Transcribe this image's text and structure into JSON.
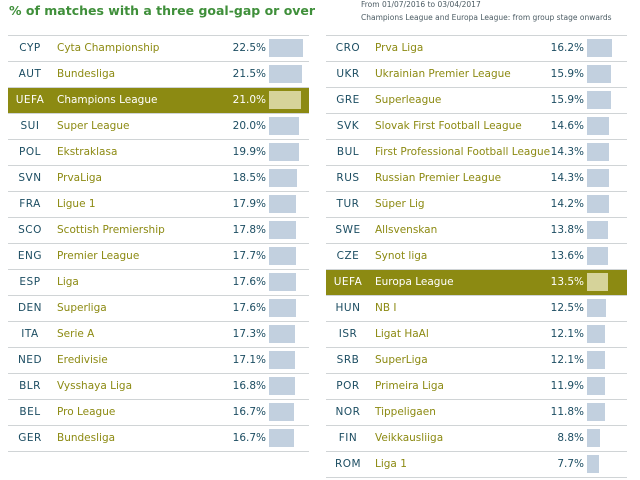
{
  "title": "% of matches with a three goal-gap or over",
  "notes": {
    "period": "From 01/07/2016 to 03/04/2017",
    "scope": "Champions League and Europa League: from group stage onwards"
  },
  "colors": {
    "title": "#3f8f3a",
    "league_text": "#8c8a12",
    "uefa_highlight": "#8c8a12",
    "bar": "#c2d0df",
    "uefa_bar": "#d6d39a"
  },
  "chart_data": {
    "type": "bar",
    "orientation": "horizontal",
    "unit": "%",
    "xlim": [
      0,
      25
    ],
    "columns": [
      {
        "rows": [
          {
            "code": "CYP",
            "league": "Cyta Championship",
            "value": 22.5,
            "label": "22.5%"
          },
          {
            "code": "AUT",
            "league": "Bundesliga",
            "value": 21.5,
            "label": "21.5%"
          },
          {
            "code": "UEFA",
            "league": "Champions League",
            "value": 21.0,
            "label": "21.0%",
            "highlight": true
          },
          {
            "code": "SUI",
            "league": "Super League",
            "value": 20.0,
            "label": "20.0%"
          },
          {
            "code": "POL",
            "league": "Ekstraklasa",
            "value": 19.9,
            "label": "19.9%"
          },
          {
            "code": "SVN",
            "league": "PrvaLiga",
            "value": 18.5,
            "label": "18.5%"
          },
          {
            "code": "FRA",
            "league": "Ligue 1",
            "value": 17.9,
            "label": "17.9%"
          },
          {
            "code": "SCO",
            "league": "Scottish Premiership",
            "value": 17.8,
            "label": "17.8%"
          },
          {
            "code": "ENG",
            "league": "Premier League",
            "value": 17.7,
            "label": "17.7%"
          },
          {
            "code": "ESP",
            "league": "Liga",
            "value": 17.6,
            "label": "17.6%"
          },
          {
            "code": "DEN",
            "league": "Superliga",
            "value": 17.6,
            "label": "17.6%"
          },
          {
            "code": "ITA",
            "league": "Serie A",
            "value": 17.3,
            "label": "17.3%"
          },
          {
            "code": "NED",
            "league": "Eredivisie",
            "value": 17.1,
            "label": "17.1%"
          },
          {
            "code": "BLR",
            "league": "Vysshaya Liga",
            "value": 16.8,
            "label": "16.8%"
          },
          {
            "code": "BEL",
            "league": "Pro League",
            "value": 16.7,
            "label": "16.7%"
          },
          {
            "code": "GER",
            "league": "Bundesliga",
            "value": 16.7,
            "label": "16.7%"
          }
        ]
      },
      {
        "rows": [
          {
            "code": "CRO",
            "league": "Prva Liga",
            "value": 16.2,
            "label": "16.2%"
          },
          {
            "code": "UKR",
            "league": "Ukrainian Premier League",
            "value": 15.9,
            "label": "15.9%"
          },
          {
            "code": "GRE",
            "league": "Superleague",
            "value": 15.9,
            "label": "15.9%"
          },
          {
            "code": "SVK",
            "league": "Slovak First Football League",
            "value": 14.6,
            "label": "14.6%"
          },
          {
            "code": "BUL",
            "league": "First Professional Football League",
            "value": 14.3,
            "label": "14.3%"
          },
          {
            "code": "RUS",
            "league": "Russian Premier League",
            "value": 14.3,
            "label": "14.3%"
          },
          {
            "code": "TUR",
            "league": "Süper Lig",
            "value": 14.2,
            "label": "14.2%"
          },
          {
            "code": "SWE",
            "league": "Allsvenskan",
            "value": 13.8,
            "label": "13.8%"
          },
          {
            "code": "CZE",
            "league": "Synot liga",
            "value": 13.6,
            "label": "13.6%"
          },
          {
            "code": "UEFA",
            "league": "Europa League",
            "value": 13.5,
            "label": "13.5%",
            "highlight": true
          },
          {
            "code": "HUN",
            "league": "NB I",
            "value": 12.5,
            "label": "12.5%"
          },
          {
            "code": "ISR",
            "league": "Ligat HaAl",
            "value": 12.1,
            "label": "12.1%"
          },
          {
            "code": "SRB",
            "league": "SuperLiga",
            "value": 12.1,
            "label": "12.1%"
          },
          {
            "code": "POR",
            "league": "Primeira Liga",
            "value": 11.9,
            "label": "11.9%"
          },
          {
            "code": "NOR",
            "league": "Tippeligaen",
            "value": 11.8,
            "label": "11.8%"
          },
          {
            "code": "FIN",
            "league": "Veikkausliiga",
            "value": 8.8,
            "label": "8.8%"
          },
          {
            "code": "ROM",
            "league": "Liga 1",
            "value": 7.7,
            "label": "7.7%"
          }
        ]
      }
    ]
  }
}
